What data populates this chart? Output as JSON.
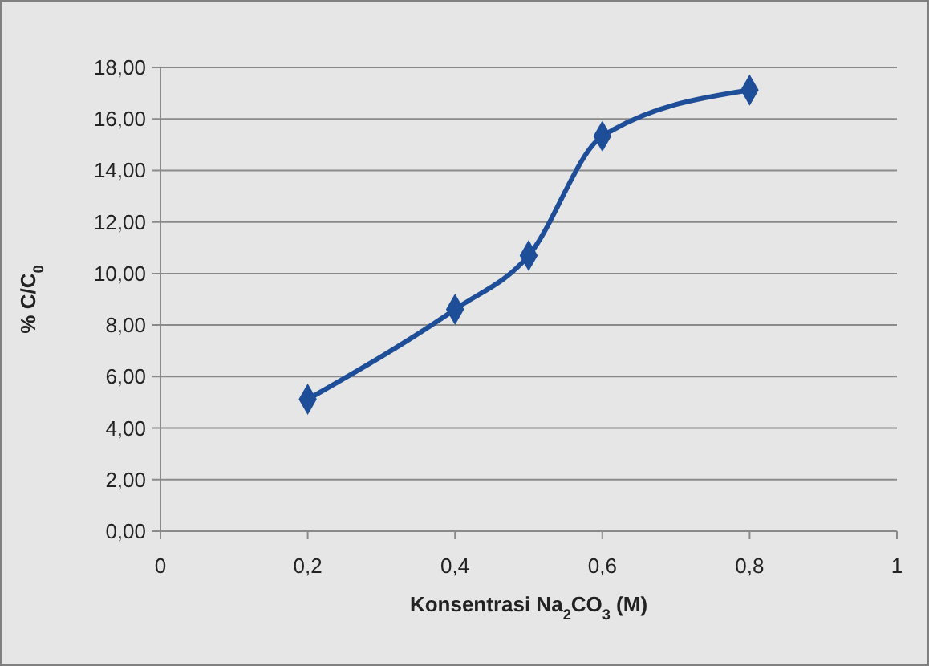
{
  "chart_data": {
    "type": "line",
    "xlabel": "Konsentrasi Na$_{2}$CO$_{3}$ (M)",
    "ylabel": "% C/C$_{0}$",
    "x": [
      0.2,
      0.4,
      0.5,
      0.6,
      0.8
    ],
    "series": [
      {
        "color": "#1f4e99",
        "values": [
          5.12,
          8.61,
          10.7,
          15.33,
          17.12
        ]
      }
    ],
    "xlim": [
      0,
      1
    ],
    "xticks": [
      0,
      {
        "value": 0.2,
        "label": "0,2"
      },
      {
        "value": 0.4,
        "label": "0,4"
      },
      {
        "value": 0.6,
        "label": "0,6"
      },
      {
        "value": 0.8,
        "label": "0,8"
      },
      1
    ],
    "ylim": [
      0,
      18
    ],
    "yticks": [
      {
        "value": 0,
        "label": "0,00"
      },
      {
        "value": 2,
        "label": "2,00"
      },
      {
        "value": 4,
        "label": "4,00"
      },
      {
        "value": 6,
        "label": "6,00"
      },
      {
        "value": 8,
        "label": "8,00"
      },
      {
        "value": 10,
        "label": "10,00"
      },
      {
        "value": 12,
        "label": "12,00"
      },
      {
        "value": 14,
        "label": "14,00"
      },
      {
        "value": 16,
        "label": "16,00"
      },
      {
        "value": 18,
        "label": "18,00"
      }
    ],
    "grid": "y",
    "marker": "diamond",
    "line_style": "solid"
  }
}
